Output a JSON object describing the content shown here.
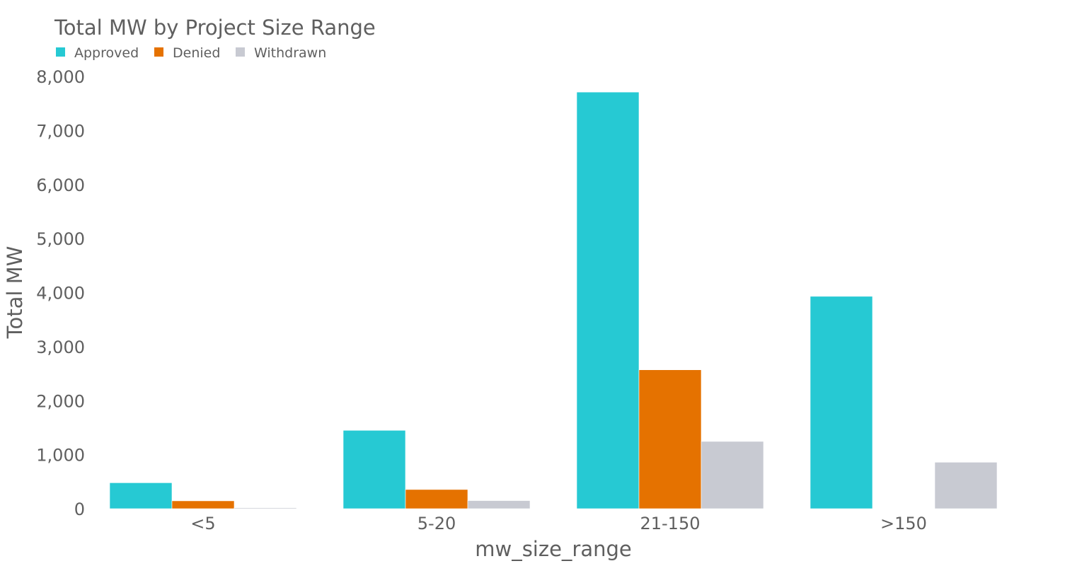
{
  "chart_data": {
    "type": "bar",
    "title": "Total MW by Project Size Range",
    "xlabel": "mw_size_range",
    "ylabel": "Total MW",
    "categories": [
      "<5",
      "5-20",
      "21-150",
      ">150"
    ],
    "series": [
      {
        "name": "Approved",
        "color": "#26c9d3",
        "values": [
          480,
          1450,
          7710,
          3930
        ]
      },
      {
        "name": "Denied",
        "color": "#e57200",
        "values": [
          145,
          355,
          2570,
          0
        ]
      },
      {
        "name": "Withdrawn",
        "color": "#c8cad2",
        "values": [
          18,
          150,
          1245,
          860
        ]
      }
    ],
    "ylim": [
      0,
      8000
    ],
    "yticks": [
      0,
      1000,
      2000,
      3000,
      4000,
      5000,
      6000,
      7000,
      8000
    ],
    "ytick_labels": [
      "0",
      "1,000",
      "2,000",
      "3,000",
      "4,000",
      "5,000",
      "6,000",
      "7,000",
      "8,000"
    ],
    "grid": false,
    "legend_position": "top-left, horizontal",
    "barmode": "grouped"
  }
}
